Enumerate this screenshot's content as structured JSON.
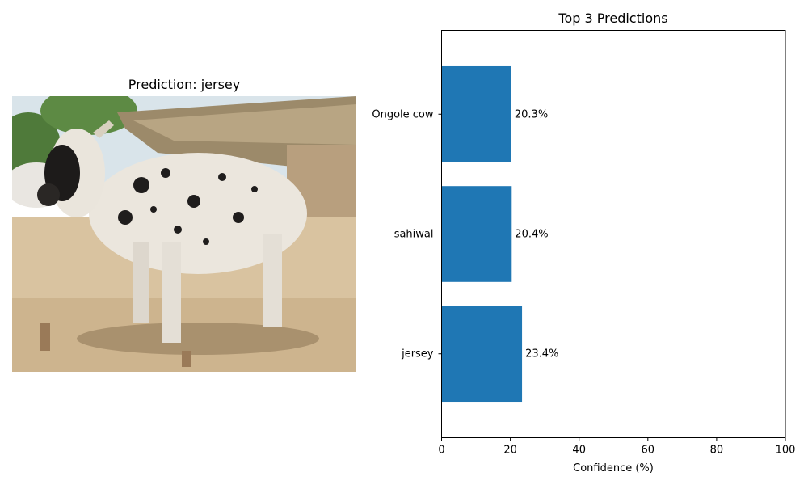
{
  "image_panel": {
    "title": "Prediction: jersey"
  },
  "chart_data": {
    "type": "bar",
    "orientation": "horizontal",
    "title": "Top 3 Predictions",
    "xlabel": "Confidence (%)",
    "ylabel": "",
    "categories": [
      "jersey",
      "sahiwal",
      "Ongole cow"
    ],
    "values": [
      23.4,
      20.4,
      20.3
    ],
    "value_labels": [
      "23.4%",
      "20.4%",
      "20.3%"
    ],
    "xlim": [
      0,
      100
    ],
    "xticks": [
      0,
      20,
      40,
      60,
      80,
      100
    ],
    "bar_color": "#1f77b4",
    "grid": false
  }
}
